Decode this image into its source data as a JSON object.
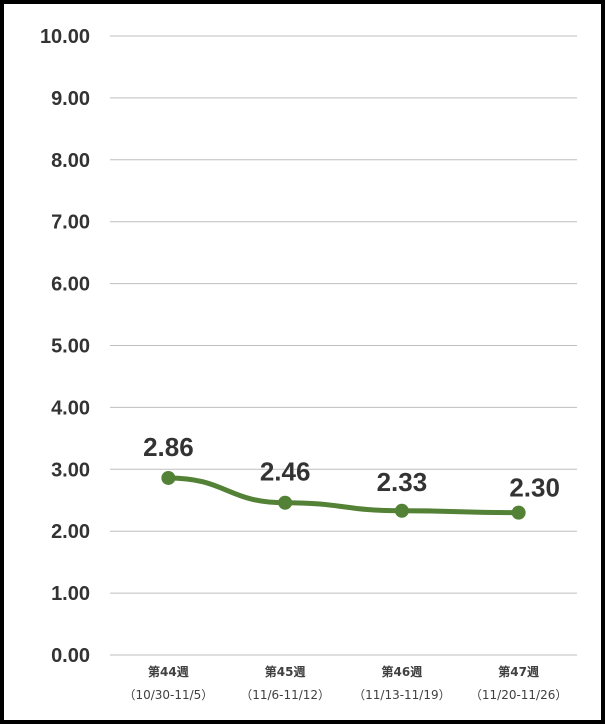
{
  "chart_data": {
    "type": "line",
    "categories": [
      "第44週",
      "第45週",
      "第46週",
      "第47週"
    ],
    "category_sublabels": [
      "（10/30-11/5）",
      "（11/6-11/12）",
      "（11/13-11/19）",
      "（11/20-11/26）"
    ],
    "values": [
      2.86,
      2.46,
      2.33,
      2.3
    ],
    "value_labels": [
      "2.86",
      "2.46",
      "2.33",
      "2.30"
    ],
    "ylim": [
      0,
      10
    ],
    "yticks": [
      "0.00",
      "1.00",
      "2.00",
      "3.00",
      "4.00",
      "5.00",
      "6.00",
      "7.00",
      "8.00",
      "9.00",
      "10.00"
    ],
    "grid": true,
    "line_color": "#538135"
  }
}
